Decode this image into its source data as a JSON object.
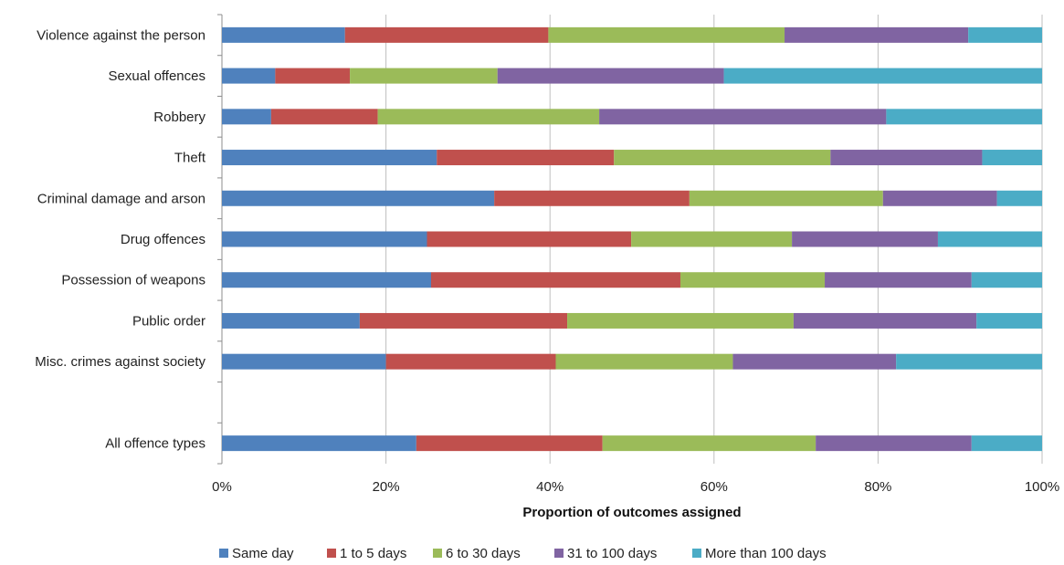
{
  "chart_data": {
    "type": "bar",
    "orientation": "horizontal",
    "stacked": "percent",
    "title": "",
    "xlabel": "Proportion of outcomes assigned",
    "ylabel": "",
    "xlim": [
      0,
      100
    ],
    "x_ticks": [
      "0%",
      "20%",
      "40%",
      "60%",
      "80%",
      "100%"
    ],
    "grid": "vertical",
    "legend_position": "bottom",
    "categories": [
      "Violence against the person",
      "Sexual offences",
      "Robbery",
      "Theft",
      "Criminal damage and arson",
      "Drug offences",
      "Possession of weapons",
      "Public order",
      "Misc. crimes against society",
      "",
      "All offence types"
    ],
    "series": [
      {
        "name": "Same day",
        "color": "#4f81bd",
        "values": [
          15.0,
          6.5,
          6.0,
          26.2,
          33.2,
          25.0,
          25.5,
          16.8,
          20.0,
          null,
          23.7
        ]
      },
      {
        "name": "1 to 5 days",
        "color": "#c0504d",
        "values": [
          24.8,
          9.1,
          13.0,
          21.6,
          23.8,
          24.9,
          30.4,
          25.3,
          20.7,
          null,
          22.7
        ]
      },
      {
        "name": "6 to 30 days",
        "color": "#9bbb59",
        "values": [
          28.8,
          18.0,
          27.0,
          26.4,
          23.6,
          19.6,
          17.6,
          27.6,
          21.6,
          null,
          26.0
        ]
      },
      {
        "name": "31 to 100 days",
        "color": "#8064a2",
        "values": [
          22.4,
          27.6,
          35.0,
          18.5,
          13.9,
          17.8,
          17.9,
          22.3,
          19.9,
          null,
          19.0
        ]
      },
      {
        "name": "More than 100 days",
        "color": "#4bacc6",
        "values": [
          9.0,
          38.8,
          19.0,
          7.3,
          5.5,
          12.7,
          8.6,
          8.0,
          17.8,
          null,
          8.6
        ]
      }
    ]
  }
}
